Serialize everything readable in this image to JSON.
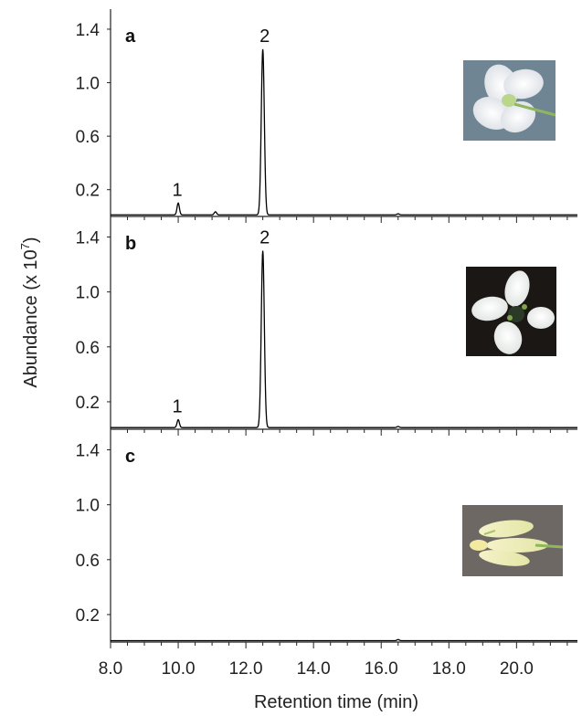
{
  "chart_data": {
    "type": "line",
    "xlabel": "Retention time  (min)",
    "ylabel_main": "Abundance (x 10",
    "ylabel_exp": "7",
    "ylabel_close": ")",
    "xlim": [
      8.0,
      21.8
    ],
    "ylim": [
      0.0,
      1.55
    ],
    "x_ticks": [
      8.0,
      10.0,
      12.0,
      14.0,
      16.0,
      18.0,
      20.0
    ],
    "x_tick_labels": [
      "8.0",
      "10.0",
      "12.0",
      "14.0",
      "16.0",
      "18.0",
      "20.0"
    ],
    "y_ticks": [
      1.4,
      1.0,
      0.6,
      0.2
    ],
    "y_tick_labels": [
      "1.4",
      "1.0",
      "0.6",
      "0.2"
    ],
    "line_color": "#000000",
    "panels": [
      {
        "letter": "a",
        "photo": "white-flower-photo",
        "baseline": 0.012,
        "peaks": [
          {
            "label": "1",
            "x": 10.0,
            "y": 0.1
          },
          {
            "label": "2",
            "x": 12.5,
            "y": 1.25
          },
          {
            "label": "",
            "x": 11.1,
            "y": 0.035
          },
          {
            "label": "",
            "x": 16.5,
            "y": 0.02
          }
        ]
      },
      {
        "letter": "b",
        "photo": "white-flower-dark-background-photo",
        "baseline": 0.012,
        "peaks": [
          {
            "label": "1",
            "x": 10.0,
            "y": 0.07
          },
          {
            "label": "2",
            "x": 12.5,
            "y": 1.3
          },
          {
            "label": "",
            "x": 16.5,
            "y": 0.02
          }
        ]
      },
      {
        "letter": "c",
        "photo": "pale-yellow-flower-buds-photo",
        "baseline": 0.01,
        "peaks": [
          {
            "label": "",
            "x": 16.5,
            "y": 0.018
          }
        ]
      }
    ]
  }
}
